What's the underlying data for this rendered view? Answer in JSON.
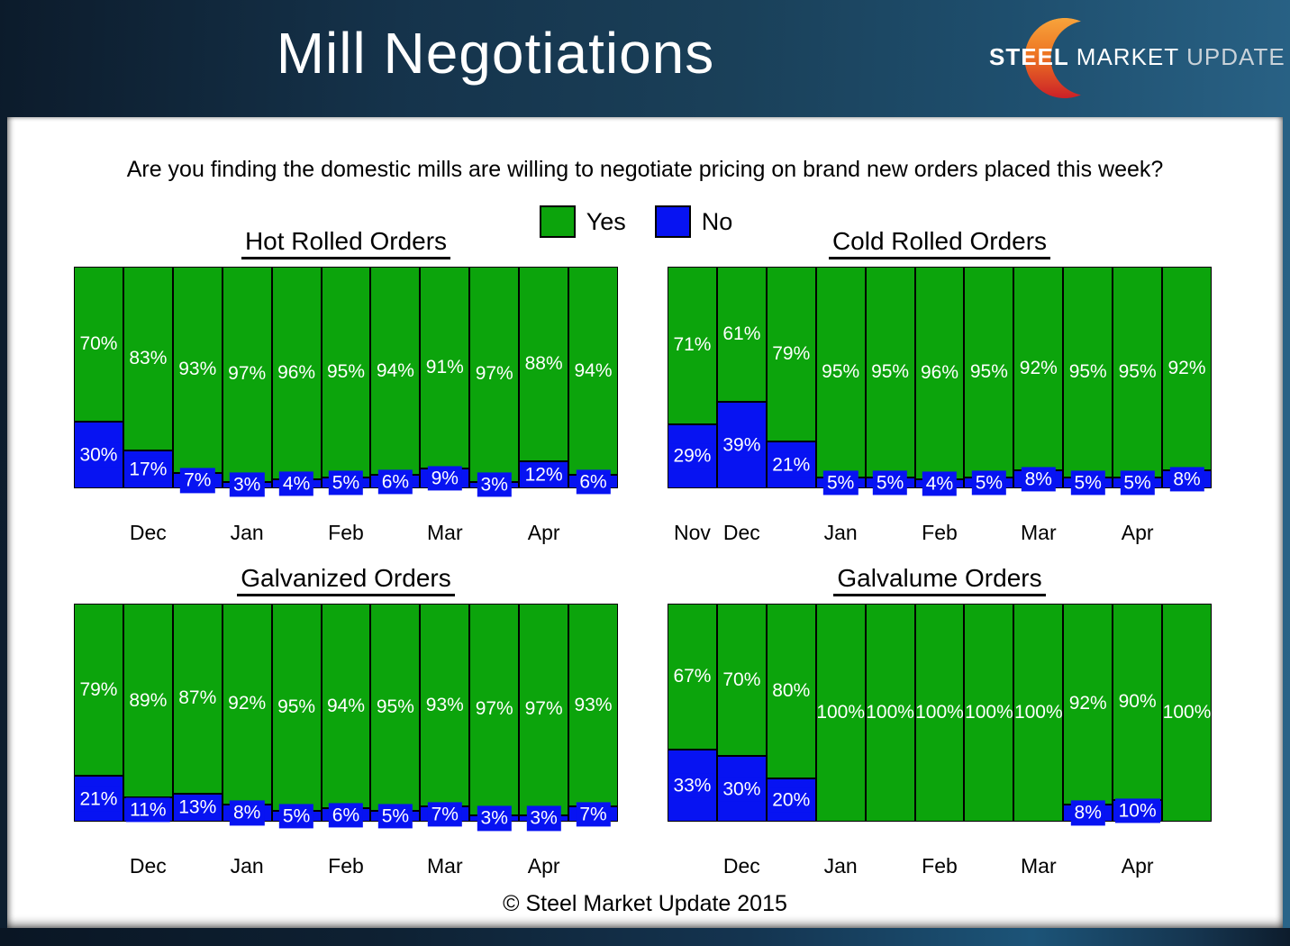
{
  "header": {
    "title": "Mill Negotiations",
    "logo": {
      "steel": "STEEL",
      "market": "MARKET",
      "update": "UPDATE",
      "icon": "crescent-icon",
      "crescent_top_color": "#F7A43C",
      "crescent_mid_color": "#EE7623",
      "crescent_bottom_color": "#CB2027"
    }
  },
  "question": "Are you finding the domestic mills are willing to negotiate pricing on brand new orders placed this week?",
  "legend": {
    "yes_label": "Yes",
    "no_label": "No",
    "yes_color": "#0CA40C",
    "no_color": "#0713F2"
  },
  "footer": "© Steel Market Update 2015",
  "chart_data": [
    {
      "type": "bar",
      "stacked": true,
      "title": "Hot Rolled Orders",
      "ylim": [
        0,
        100
      ],
      "value_suffix": "%",
      "grid": false,
      "legend_position": "top-center-shared",
      "series": [
        {
          "name": "Yes",
          "values": [
            70,
            83,
            93,
            97,
            96,
            95,
            94,
            91,
            97,
            88,
            94
          ]
        },
        {
          "name": "No",
          "values": [
            30,
            17,
            7,
            3,
            4,
            5,
            6,
            9,
            3,
            12,
            6
          ]
        }
      ],
      "x_tick_labels": [
        {
          "label": "Dec",
          "bar": 2
        },
        {
          "label": "Jan",
          "bar": 4
        },
        {
          "label": "Feb",
          "bar": 6
        },
        {
          "label": "Mar",
          "bar": 8
        },
        {
          "label": "Apr",
          "bar": 10
        }
      ]
    },
    {
      "type": "bar",
      "stacked": true,
      "title": "Cold Rolled Orders",
      "ylim": [
        0,
        100
      ],
      "value_suffix": "%",
      "grid": false,
      "legend_position": "top-center-shared",
      "series": [
        {
          "name": "Yes",
          "values": [
            71,
            61,
            79,
            95,
            95,
            96,
            95,
            92,
            95,
            95,
            92
          ]
        },
        {
          "name": "No",
          "values": [
            29,
            39,
            21,
            5,
            5,
            4,
            5,
            8,
            5,
            5,
            8
          ]
        }
      ],
      "x_tick_labels": [
        {
          "label": "Nov",
          "bar": 1
        },
        {
          "label": "Dec",
          "bar": 2
        },
        {
          "label": "Jan",
          "bar": 4
        },
        {
          "label": "Feb",
          "bar": 6
        },
        {
          "label": "Mar",
          "bar": 8
        },
        {
          "label": "Apr",
          "bar": 10
        }
      ]
    },
    {
      "type": "bar",
      "stacked": true,
      "title": "Galvanized Orders",
      "ylim": [
        0,
        100
      ],
      "value_suffix": "%",
      "grid": false,
      "legend_position": "top-center-shared",
      "series": [
        {
          "name": "Yes",
          "values": [
            79,
            89,
            87,
            92,
            95,
            94,
            95,
            93,
            97,
            97,
            93
          ]
        },
        {
          "name": "No",
          "values": [
            21,
            11,
            13,
            8,
            5,
            6,
            5,
            7,
            3,
            3,
            7
          ]
        }
      ],
      "x_tick_labels": [
        {
          "label": "Dec",
          "bar": 2
        },
        {
          "label": "Jan",
          "bar": 4
        },
        {
          "label": "Feb",
          "bar": 6
        },
        {
          "label": "Mar",
          "bar": 8
        },
        {
          "label": "Apr",
          "bar": 10
        }
      ]
    },
    {
      "type": "bar",
      "stacked": true,
      "title": "Galvalume Orders",
      "ylim": [
        0,
        100
      ],
      "value_suffix": "%",
      "grid": false,
      "legend_position": "top-center-shared",
      "series": [
        {
          "name": "Yes",
          "values": [
            67,
            70,
            80,
            100,
            100,
            100,
            100,
            100,
            92,
            90,
            100
          ]
        },
        {
          "name": "No",
          "values": [
            33,
            30,
            20,
            0,
            0,
            0,
            0,
            0,
            8,
            10,
            0
          ]
        }
      ],
      "x_tick_labels": [
        {
          "label": "Dec",
          "bar": 2
        },
        {
          "label": "Jan",
          "bar": 4
        },
        {
          "label": "Feb",
          "bar": 6
        },
        {
          "label": "Mar",
          "bar": 8
        },
        {
          "label": "Apr",
          "bar": 10
        }
      ]
    }
  ]
}
